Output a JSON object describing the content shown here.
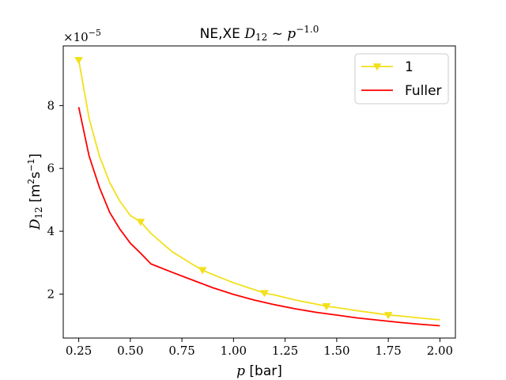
{
  "chart_data": {
    "type": "line",
    "title_parts": [
      "NE,XE ",
      "D",
      "12",
      " ~ ",
      "p",
      "−1.0"
    ],
    "xlabel_parts": [
      "p",
      " [bar]"
    ],
    "ylabel_parts": [
      "D",
      "12",
      " [m",
      "2",
      "s",
      "−1",
      "]"
    ],
    "offset_text_parts": [
      "×10",
      "−5"
    ],
    "xlim": [
      0.175,
      2.075
    ],
    "ylim": [
      0.6,
      9.9
    ],
    "x_ticks": [
      0.25,
      0.5,
      0.75,
      1.0,
      1.25,
      1.5,
      1.75,
      2.0
    ],
    "x_tick_labels": [
      "0.25",
      "0.50",
      "0.75",
      "1.00",
      "1.25",
      "1.50",
      "1.75",
      "2.00"
    ],
    "y_ticks": [
      2,
      4,
      6,
      8
    ],
    "y_tick_labels": [
      "2",
      "4",
      "6",
      "8"
    ],
    "grid": false,
    "legend_position": "top-right",
    "series": [
      {
        "name": "1",
        "color": "#f2e01a",
        "marker": "triangle-down",
        "x": [
          0.25,
          0.3,
          0.35,
          0.4,
          0.45,
          0.5,
          0.55,
          0.6,
          0.7,
          0.8,
          0.85,
          0.9,
          1.0,
          1.1,
          1.15,
          1.2,
          1.3,
          1.4,
          1.45,
          1.5,
          1.6,
          1.7,
          1.75,
          1.8,
          1.9,
          2.0
        ],
        "values": [
          9.45,
          7.6,
          6.4,
          5.55,
          4.95,
          4.5,
          4.3,
          3.93,
          3.36,
          2.95,
          2.76,
          2.62,
          2.36,
          2.14,
          2.03,
          1.97,
          1.81,
          1.68,
          1.61,
          1.57,
          1.47,
          1.38,
          1.33,
          1.31,
          1.24,
          1.18
        ],
        "marker_x": [
          0.25,
          0.55,
          0.85,
          1.15,
          1.45,
          1.75
        ]
      },
      {
        "name": "Fuller",
        "color": "#ff0000",
        "marker": "none",
        "x": [
          0.25,
          0.3,
          0.35,
          0.4,
          0.45,
          0.5,
          0.55,
          0.6,
          0.7,
          0.8,
          0.9,
          1.0,
          1.1,
          1.2,
          1.3,
          1.4,
          1.5,
          1.6,
          1.7,
          1.8,
          1.9,
          2.0
        ],
        "values": [
          7.95,
          6.4,
          5.4,
          4.6,
          4.06,
          3.62,
          3.3,
          2.96,
          2.7,
          2.45,
          2.2,
          1.99,
          1.81,
          1.66,
          1.53,
          1.42,
          1.33,
          1.24,
          1.17,
          1.1,
          1.04,
          0.99
        ]
      }
    ]
  }
}
